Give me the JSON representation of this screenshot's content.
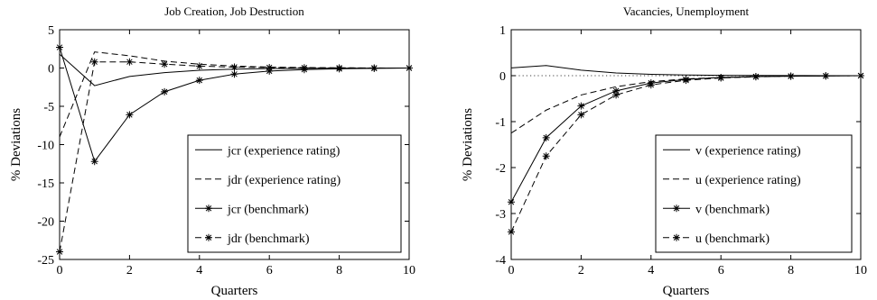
{
  "chart_data": [
    {
      "type": "line",
      "title": "Job Creation, Job Destruction",
      "xlabel": "Quarters",
      "ylabel": "% Deviations",
      "xlim": [
        0,
        10
      ],
      "ylim": [
        -25,
        5
      ],
      "xticks": [
        "0",
        "2",
        "4",
        "6",
        "8",
        "10"
      ],
      "yticks": [
        "5",
        "0",
        "-5",
        "-10",
        "-15",
        "-20",
        "-25"
      ],
      "grid": false,
      "legend_position": "bottom-right",
      "x": [
        0,
        1,
        2,
        3,
        4,
        5,
        6,
        7,
        8,
        9,
        10
      ],
      "series": [
        {
          "name": "jcr (experience rating)",
          "style": "solid",
          "marker": "none",
          "values": [
            1.8,
            -2.3,
            -1.1,
            -0.6,
            -0.3,
            -0.15,
            -0.08,
            -0.04,
            -0.02,
            -0.01,
            0
          ]
        },
        {
          "name": "jdr (experience rating)",
          "style": "dashed",
          "marker": "none",
          "values": [
            -9.0,
            2.1,
            1.6,
            0.9,
            0.5,
            0.25,
            0.12,
            0.06,
            0.03,
            0.01,
            0
          ]
        },
        {
          "name": "jcr (benchmark)",
          "style": "solid",
          "marker": "star",
          "values": [
            2.7,
            -12.2,
            -6.1,
            -3.1,
            -1.6,
            -0.8,
            -0.4,
            -0.2,
            -0.1,
            -0.05,
            0
          ]
        },
        {
          "name": "jdr (benchmark)",
          "style": "dashed",
          "marker": "star",
          "values": [
            -24.0,
            0.8,
            0.8,
            0.5,
            0.25,
            0.12,
            0.06,
            0.03,
            0.01,
            0.005,
            0
          ]
        }
      ]
    },
    {
      "type": "line",
      "title": "Vacancies, Unemployment",
      "xlabel": "Quarters",
      "ylabel": "% Deviations",
      "xlim": [
        0,
        10
      ],
      "ylim": [
        -4,
        1
      ],
      "xticks": [
        "0",
        "2",
        "4",
        "6",
        "8",
        "10"
      ],
      "yticks": [
        "1",
        "0",
        "-1",
        "-2",
        "-3",
        "-4"
      ],
      "grid": false,
      "legend_position": "bottom-right",
      "zero_line": "dotted",
      "x": [
        0,
        1,
        2,
        3,
        4,
        5,
        6,
        7,
        8,
        9,
        10
      ],
      "series": [
        {
          "name": "v (experience rating)",
          "style": "solid",
          "marker": "none",
          "values": [
            0.17,
            0.22,
            0.12,
            0.06,
            0.03,
            0.015,
            0.008,
            0.004,
            0.002,
            0.001,
            0
          ]
        },
        {
          "name": "u (experience rating)",
          "style": "dashed",
          "marker": "none",
          "values": [
            -1.25,
            -0.75,
            -0.42,
            -0.24,
            -0.13,
            -0.07,
            -0.04,
            -0.02,
            -0.01,
            -0.005,
            0
          ]
        },
        {
          "name": "v (benchmark)",
          "style": "solid",
          "marker": "star",
          "values": [
            -2.75,
            -1.35,
            -0.66,
            -0.33,
            -0.16,
            -0.08,
            -0.04,
            -0.02,
            -0.01,
            -0.005,
            0
          ]
        },
        {
          "name": "u (benchmark)",
          "style": "dashed",
          "marker": "star",
          "values": [
            -3.4,
            -1.75,
            -0.85,
            -0.42,
            -0.2,
            -0.1,
            -0.05,
            -0.025,
            -0.012,
            -0.006,
            0
          ]
        }
      ]
    }
  ]
}
